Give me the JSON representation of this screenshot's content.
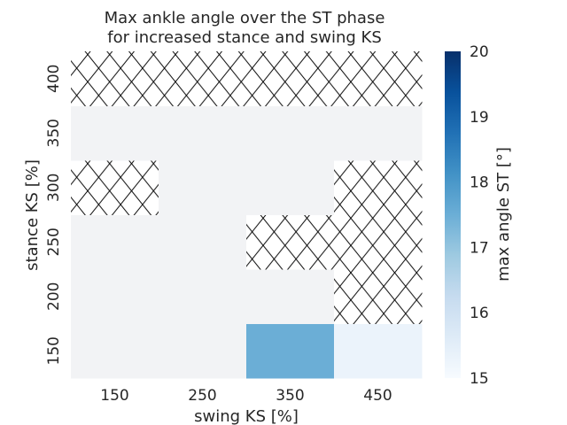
{
  "chart_data": {
    "type": "heatmap",
    "title": [
      "Max ankle angle over the ST phase",
      "for increased stance and swing KS"
    ],
    "xlabel": "swing KS [%]",
    "ylabel": "stance KS [%]",
    "x_categories": [
      "150",
      "250",
      "350",
      "450"
    ],
    "y_categories": [
      "150",
      "200",
      "250",
      "300",
      "350",
      "400"
    ],
    "values_by_row_bottom_to_top": [
      [
        15.0,
        15.0,
        17.5,
        15.3
      ],
      [
        15.0,
        15.0,
        15.0,
        null
      ],
      [
        15.0,
        15.0,
        null,
        null
      ],
      [
        null,
        15.0,
        15.0,
        null
      ],
      [
        15.0,
        15.0,
        15.0,
        15.0
      ],
      [
        null,
        null,
        null,
        null
      ]
    ],
    "missing_marker": "hatched",
    "colorbar": {
      "label": "max angle ST [°]",
      "min": 15,
      "max": 20,
      "ticks": [
        "15",
        "16",
        "17",
        "18",
        "19",
        "20"
      ],
      "colormap": "Blues"
    },
    "grid": false
  }
}
